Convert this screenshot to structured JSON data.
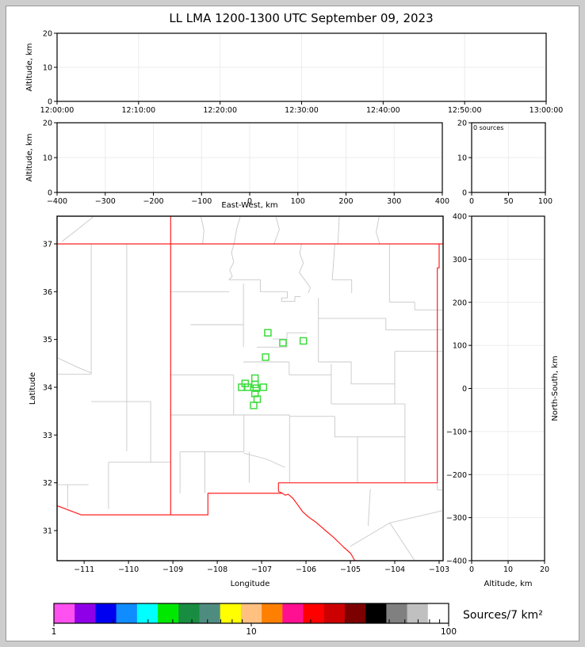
{
  "title": "LL LMA 1200-1300 UTC September 09, 2023",
  "colors": {
    "page_margin": "#cdcdcd",
    "page_border": "#999999",
    "panel_frame": "#000000",
    "grid": "#ececec",
    "state_border": "#ff2020",
    "county_line": "#c8c8c8",
    "station": "#3ddc3d"
  },
  "chart_data": [
    {
      "id": "time-height",
      "type": "scatter",
      "points": [],
      "ylabel": "Altitude, km",
      "ylim": [
        0,
        20
      ],
      "yticks": [
        0,
        10,
        20
      ],
      "ytick_labels": [
        "0",
        "10",
        "20"
      ],
      "xlim": [
        0,
        6
      ],
      "xticks": [
        0,
        1,
        2,
        3,
        4,
        5,
        6
      ],
      "xtick_labels": [
        "12:00:00",
        "12:10:00",
        "12:20:00",
        "12:30:00",
        "12:40:00",
        "12:50:00",
        "13:00:00"
      ],
      "grid": true
    },
    {
      "id": "ew-height",
      "type": "scatter",
      "points": [],
      "xlabel": "East-West, km",
      "ylabel": "Altitude, km",
      "xlim": [
        -400,
        400
      ],
      "xticks": [
        -400,
        -300,
        -200,
        -100,
        0,
        100,
        200,
        300,
        400
      ],
      "xtick_labels": [
        "−400",
        "−300",
        "−200",
        "−100",
        "0",
        "100",
        "200",
        "300",
        "400"
      ],
      "ylim": [
        0,
        20
      ],
      "yticks": [
        0,
        10,
        20
      ],
      "ytick_labels": [
        "0",
        "10",
        "20"
      ],
      "grid": true
    },
    {
      "id": "altitude-histogram",
      "type": "histogram",
      "annotation": "0 sources",
      "points": [],
      "xlim": [
        0,
        100
      ],
      "xticks": [
        0,
        50,
        100
      ],
      "xtick_labels": [
        "0",
        "50",
        "100"
      ],
      "ylim": [
        0,
        20
      ],
      "yticks": [
        0,
        10,
        20
      ],
      "ytick_labels": [
        "0",
        "10",
        "20"
      ],
      "grid": true
    },
    {
      "id": "plan-view-map",
      "type": "map-scatter",
      "points": [],
      "xlabel": "Longitude",
      "ylabel": "Latitude",
      "xlim": [
        -111.61,
        -102.91
      ],
      "xticks": [
        -111,
        -110,
        -109,
        -108,
        -107,
        -106,
        -105,
        -104,
        -103
      ],
      "xtick_labels": [
        "−111",
        "−110",
        "−109",
        "−108",
        "−107",
        "−106",
        "−105",
        "−104",
        "−103"
      ],
      "ylim": [
        30.37,
        37.58
      ],
      "yticks": [
        31,
        32,
        33,
        34,
        35,
        36,
        37
      ],
      "ytick_labels": [
        "31",
        "32",
        "33",
        "34",
        "35",
        "36",
        "37"
      ],
      "grid": false,
      "stations": [
        [
          -106.86,
          35.14
        ],
        [
          -106.52,
          34.93
        ],
        [
          -106.06,
          34.97
        ],
        [
          -106.91,
          34.63
        ],
        [
          -107.15,
          34.19
        ],
        [
          -107.37,
          34.08
        ],
        [
          -107.45,
          34.0
        ],
        [
          -107.32,
          34.0
        ],
        [
          -107.15,
          34.06
        ],
        [
          -107.12,
          33.98
        ],
        [
          -106.96,
          34.0
        ],
        [
          -107.15,
          33.87
        ],
        [
          -107.1,
          33.75
        ],
        [
          -107.18,
          33.62
        ]
      ],
      "state_border_paths": [
        [
          [
            -111.61,
            37.0
          ],
          [
            -102.91,
            37.0
          ]
        ],
        [
          [
            -109.05,
            37.58
          ],
          [
            -109.05,
            31.33
          ]
        ],
        [
          [
            -111.61,
            31.52
          ],
          [
            -111.07,
            31.33
          ],
          [
            -109.05,
            31.33
          ]
        ],
        [
          [
            -109.05,
            31.33
          ],
          [
            -108.21,
            31.33
          ],
          [
            -108.21,
            31.78
          ],
          [
            -106.53,
            31.78
          ]
        ],
        [
          [
            -106.53,
            31.78
          ],
          [
            -106.47,
            31.74
          ],
          [
            -106.4,
            31.76
          ],
          [
            -106.3,
            31.68
          ],
          [
            -106.21,
            31.57
          ],
          [
            -106.08,
            31.4
          ],
          [
            -105.95,
            31.29
          ],
          [
            -105.77,
            31.17
          ],
          [
            -105.56,
            31.0
          ],
          [
            -105.38,
            30.86
          ],
          [
            -105.16,
            30.66
          ],
          [
            -104.99,
            30.52
          ],
          [
            -104.9,
            30.37
          ]
        ],
        [
          [
            -103.0,
            37.0
          ],
          [
            -103.0,
            36.5
          ],
          [
            -103.04,
            36.5
          ],
          [
            -103.04,
            32.0
          ],
          [
            -106.62,
            32.0
          ],
          [
            -106.62,
            31.82
          ],
          [
            -106.53,
            31.78
          ]
        ]
      ],
      "county_paths": [
        [
          [
            -111.5,
            37.05
          ],
          [
            -111.18,
            37.28
          ],
          [
            -110.95,
            37.45
          ],
          [
            -110.78,
            37.58
          ]
        ],
        [
          [
            -108.37,
            37.58
          ],
          [
            -108.3,
            37.28
          ],
          [
            -108.33,
            37.0
          ]
        ],
        [
          [
            -107.48,
            37.58
          ],
          [
            -107.56,
            37.32
          ],
          [
            -107.62,
            37.0
          ]
        ],
        [
          [
            -106.68,
            37.58
          ],
          [
            -106.6,
            37.3
          ],
          [
            -106.72,
            37.0
          ]
        ],
        [
          [
            -105.25,
            37.58
          ],
          [
            -105.28,
            37.0
          ]
        ],
        [
          [
            -104.35,
            37.58
          ],
          [
            -104.42,
            37.25
          ],
          [
            -104.34,
            37.0
          ]
        ],
        [
          [
            -110.84,
            37.0
          ],
          [
            -110.84,
            34.27
          ]
        ],
        [
          [
            -110.04,
            37.0
          ],
          [
            -110.04,
            32.66
          ]
        ],
        [
          [
            -111.61,
            34.27
          ],
          [
            -110.84,
            34.27
          ]
        ],
        [
          [
            -111.61,
            34.62
          ],
          [
            -111.15,
            34.42
          ],
          [
            -110.84,
            34.3
          ]
        ],
        [
          [
            -110.84,
            33.7
          ],
          [
            -109.5,
            33.7
          ]
        ],
        [
          [
            -109.5,
            33.7
          ],
          [
            -109.5,
            32.43
          ]
        ],
        [
          [
            -110.45,
            32.43
          ],
          [
            -109.05,
            32.43
          ]
        ],
        [
          [
            -110.45,
            32.43
          ],
          [
            -110.45,
            31.45
          ]
        ],
        [
          [
            -111.61,
            31.96
          ],
          [
            -110.9,
            31.96
          ]
        ],
        [
          [
            -111.37,
            31.96
          ],
          [
            -111.37,
            31.48
          ]
        ],
        [
          [
            -109.05,
            36.0
          ],
          [
            -107.73,
            36.0
          ]
        ],
        [
          [
            -107.62,
            37.0
          ],
          [
            -107.68,
            36.82
          ],
          [
            -107.63,
            36.62
          ],
          [
            -107.72,
            36.45
          ],
          [
            -107.66,
            36.32
          ],
          [
            -107.74,
            36.25
          ]
        ],
        [
          [
            -107.74,
            36.25
          ],
          [
            -107.03,
            36.25
          ],
          [
            -107.03,
            36.0
          ],
          [
            -106.42,
            36.0
          ]
        ],
        [
          [
            -106.42,
            36.0
          ],
          [
            -106.42,
            35.87
          ],
          [
            -106.55,
            35.87
          ],
          [
            -106.55,
            35.8
          ],
          [
            -106.25,
            35.8
          ],
          [
            -106.25,
            35.9
          ],
          [
            -106.12,
            35.9
          ]
        ],
        [
          [
            -106.1,
            37.0
          ],
          [
            -106.14,
            36.8
          ],
          [
            -106.06,
            36.6
          ],
          [
            -106.15,
            36.4
          ],
          [
            -106.03,
            36.25
          ],
          [
            -105.9,
            36.08
          ],
          [
            -105.95,
            35.97
          ]
        ],
        [
          [
            -105.35,
            37.0
          ],
          [
            -105.38,
            36.6
          ],
          [
            -105.41,
            36.25
          ],
          [
            -104.97,
            36.25
          ]
        ],
        [
          [
            -104.97,
            36.25
          ],
          [
            -104.97,
            35.97
          ]
        ],
        [
          [
            -104.12,
            37.0
          ],
          [
            -104.12,
            35.78
          ]
        ],
        [
          [
            -104.12,
            35.78
          ],
          [
            -103.55,
            35.78
          ],
          [
            -103.55,
            35.62
          ],
          [
            -102.91,
            35.62
          ]
        ],
        [
          [
            -105.72,
            35.87
          ],
          [
            -105.72,
            34.53
          ]
        ],
        [
          [
            -105.72,
            35.44
          ],
          [
            -104.2,
            35.44
          ],
          [
            -104.2,
            35.2
          ],
          [
            -102.91,
            35.2
          ]
        ],
        [
          [
            -105.72,
            34.53
          ],
          [
            -104.98,
            34.53
          ],
          [
            -104.98,
            34.07
          ],
          [
            -104.0,
            34.07
          ]
        ],
        [
          [
            -104.0,
            34.75
          ],
          [
            -102.91,
            34.75
          ]
        ],
        [
          [
            -104.0,
            34.75
          ],
          [
            -104.0,
            33.65
          ]
        ],
        [
          [
            -105.43,
            33.65
          ],
          [
            -103.77,
            33.65
          ]
        ],
        [
          [
            -103.77,
            33.65
          ],
          [
            -103.77,
            32.0
          ]
        ],
        [
          [
            -105.43,
            34.48
          ],
          [
            -105.43,
            33.65
          ]
        ],
        [
          [
            -106.38,
            34.26
          ],
          [
            -105.43,
            34.26
          ]
        ],
        [
          [
            -108.6,
            35.31
          ],
          [
            -107.41,
            35.31
          ]
        ],
        [
          [
            -107.41,
            36.17
          ],
          [
            -107.41,
            34.84
          ]
        ],
        [
          [
            -109.05,
            34.26
          ],
          [
            -107.63,
            34.26
          ]
        ],
        [
          [
            -107.63,
            34.26
          ],
          [
            -107.63,
            33.42
          ]
        ],
        [
          [
            -109.05,
            33.42
          ],
          [
            -106.37,
            33.42
          ]
        ],
        [
          [
            -107.4,
            33.42
          ],
          [
            -107.4,
            32.65
          ]
        ],
        [
          [
            -108.84,
            32.65
          ],
          [
            -107.4,
            32.65
          ]
        ],
        [
          [
            -108.84,
            32.65
          ],
          [
            -108.84,
            31.78
          ]
        ],
        [
          [
            -108.28,
            32.65
          ],
          [
            -108.28,
            31.78
          ]
        ],
        [
          [
            -107.28,
            32.65
          ],
          [
            -107.28,
            32.0
          ]
        ],
        [
          [
            -107.4,
            32.62
          ],
          [
            -106.9,
            32.5
          ],
          [
            -106.47,
            32.32
          ]
        ],
        [
          [
            -106.37,
            33.42
          ],
          [
            -106.37,
            32.0
          ]
        ],
        [
          [
            -106.37,
            33.39
          ],
          [
            -105.35,
            33.39
          ],
          [
            -105.35,
            32.96
          ],
          [
            -104.84,
            32.96
          ]
        ],
        [
          [
            -104.84,
            32.96
          ],
          [
            -104.84,
            32.0
          ]
        ],
        [
          [
            -104.84,
            32.96
          ],
          [
            -103.77,
            32.96
          ]
        ],
        [
          [
            -106.43,
            35.14
          ],
          [
            -105.98,
            35.14
          ]
        ],
        [
          [
            -106.75,
            35.01
          ],
          [
            -106.43,
            35.01
          ]
        ],
        [
          [
            -106.43,
            35.14
          ],
          [
            -106.43,
            34.84
          ],
          [
            -107.11,
            34.84
          ]
        ],
        [
          [
            -107.41,
            34.53
          ],
          [
            -106.38,
            34.53
          ]
        ],
        [
          [
            -106.38,
            34.53
          ],
          [
            -106.38,
            34.26
          ]
        ],
        [
          [
            -105.0,
            30.67
          ],
          [
            -104.11,
            31.16
          ],
          [
            -102.91,
            31.42
          ]
        ],
        [
          [
            -104.11,
            31.16
          ],
          [
            -103.55,
            30.37
          ]
        ],
        [
          [
            -104.55,
            31.87
          ],
          [
            -104.6,
            31.1
          ]
        ],
        [
          [
            -103.04,
            32.0
          ],
          [
            -103.04,
            31.85
          ],
          [
            -102.91,
            31.85
          ]
        ]
      ]
    },
    {
      "id": "ns-height",
      "type": "scatter",
      "points": [],
      "xlabel": "Altitude, km",
      "ylabel_right": "North-South, km",
      "xlim": [
        0,
        20
      ],
      "xticks": [
        0,
        10,
        20
      ],
      "xtick_labels": [
        "0",
        "10",
        "20"
      ],
      "ylim": [
        -400,
        400
      ],
      "yticks": [
        -400,
        -300,
        -200,
        -100,
        0,
        100,
        200,
        300,
        400
      ],
      "ytick_labels": [
        "−400",
        "−300",
        "−200",
        "−100",
        "0",
        "100",
        "200",
        "300",
        "400"
      ],
      "grid": true
    },
    {
      "id": "colorbar",
      "type": "colorbar",
      "label": "Sources/7 km²",
      "scale": "log",
      "lim": [
        1,
        100
      ],
      "major_ticks": [
        1,
        10,
        100
      ],
      "major_tick_labels": [
        "1",
        "10",
        "100"
      ],
      "minor_ticks": [
        2,
        3,
        4,
        5,
        6,
        7,
        8,
        9,
        20,
        30,
        40,
        50,
        60,
        70,
        80,
        90
      ],
      "segment_colors": [
        "#ff50f0",
        "#8f00e8",
        "#0000f0",
        "#0f8cff",
        "#00ffff",
        "#00e800",
        "#188c40",
        "#4f8c80",
        "#ffff00",
        "#ffc080",
        "#ff8000",
        "#ff1090",
        "#ff0000",
        "#cc0000",
        "#7c0000",
        "#000000",
        "#808080",
        "#c0c0c0",
        "#ffffff"
      ]
    }
  ]
}
